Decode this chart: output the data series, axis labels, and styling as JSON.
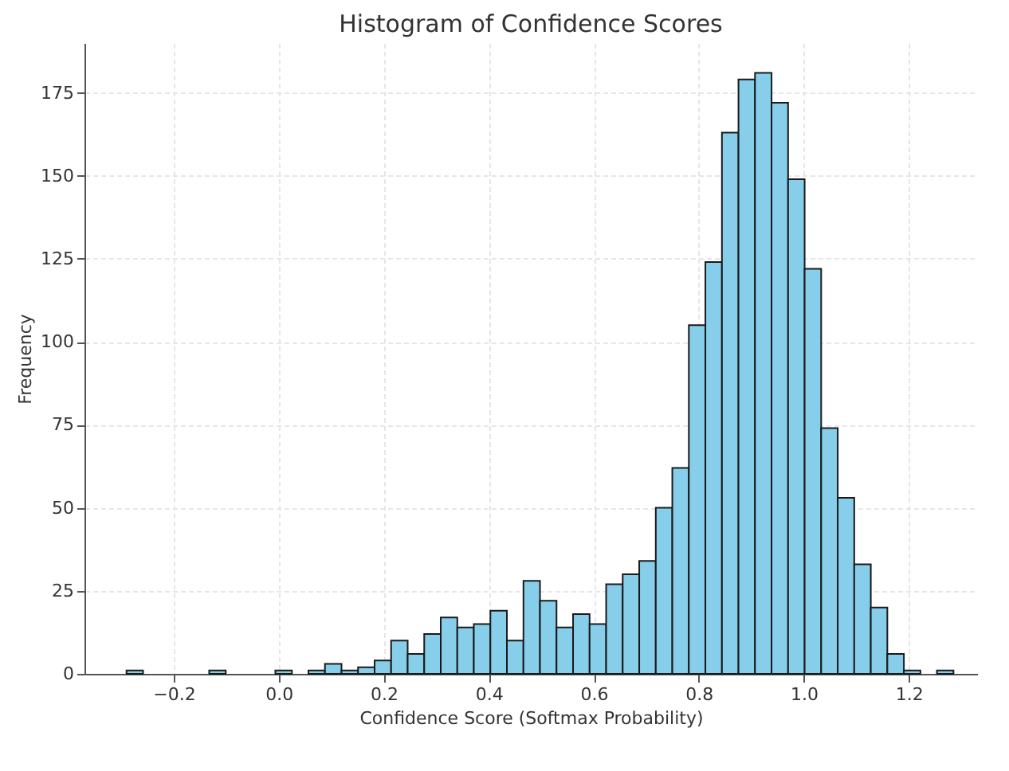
{
  "chart_data": {
    "type": "histogram",
    "title": "Histogram of Confidence Scores",
    "xlabel": "Confidence Score (Softmax Probability)",
    "ylabel": "Frequency",
    "bins": [
      -0.29,
      -0.2585,
      -0.227,
      -0.1955,
      -0.164,
      -0.1325,
      -0.101,
      -0.0695,
      -0.038,
      -0.0065,
      0.025,
      0.0565,
      0.088,
      0.1195,
      0.151,
      0.1825,
      0.214,
      0.2455,
      0.277,
      0.3085,
      0.34,
      0.3715,
      0.403,
      0.4345,
      0.466,
      0.4975,
      0.529,
      0.5605,
      0.592,
      0.6235,
      0.655,
      0.6865,
      0.718,
      0.7495,
      0.781,
      0.8125,
      0.844,
      0.8755,
      0.907,
      0.9385,
      0.97,
      1.0015,
      1.033,
      1.0645,
      1.096,
      1.1275,
      1.159,
      1.1905,
      1.222,
      1.2535,
      1.285
    ],
    "values": [
      1,
      0,
      0,
      0,
      0,
      1,
      0,
      0,
      0,
      1,
      0,
      1,
      3,
      1,
      2,
      4,
      10,
      6,
      12,
      17,
      14,
      15,
      19,
      10,
      28,
      22,
      14,
      18,
      15,
      27,
      30,
      34,
      50,
      62,
      105,
      124,
      163,
      179,
      181,
      172,
      149,
      122,
      74,
      53,
      33,
      20,
      6,
      1,
      0,
      1
    ],
    "color": "#87ceeb",
    "xlim": [
      -0.37,
      1.33
    ],
    "xticks": [
      {
        "value": -0.2,
        "label": "−0.2"
      },
      {
        "value": 0,
        "label": "0.0"
      },
      {
        "value": 0.2,
        "label": "0.2"
      },
      {
        "value": 0.4,
        "label": "0.4"
      },
      {
        "value": 0.6,
        "label": "0.6"
      },
      {
        "value": 0.8,
        "label": "0.8"
      },
      {
        "value": 1,
        "label": "1.0"
      },
      {
        "value": 1.2,
        "label": "1.2"
      }
    ],
    "ylim": [
      0,
      190
    ],
    "yticks": [
      0,
      25,
      50,
      75,
      100,
      125,
      150,
      175
    ],
    "grid": true
  }
}
